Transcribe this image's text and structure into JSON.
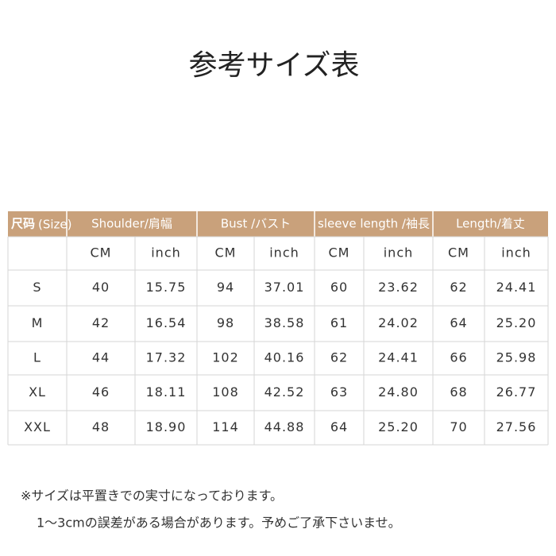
{
  "title": "参考サイズ表",
  "table": {
    "size_label": "尺码",
    "size_note": "(Size)",
    "groups": [
      "Shoulder/肩幅",
      "Bust /バスト",
      "sleeve length /袖長",
      "Length/着丈"
    ],
    "units": [
      "CM",
      "inch",
      "CM",
      "inch",
      "CM",
      "inch",
      "CM",
      "inch"
    ],
    "rows": [
      [
        "S",
        "40",
        "15.75",
        "94",
        "37.01",
        "60",
        "23.62",
        "62",
        "24.41"
      ],
      [
        "M",
        "42",
        "16.54",
        "98",
        "38.58",
        "61",
        "24.02",
        "64",
        "25.20"
      ],
      [
        "L",
        "44",
        "17.32",
        "102",
        "40.16",
        "62",
        "24.41",
        "66",
        "25.98"
      ],
      [
        "XL",
        "46",
        "18.11",
        "108",
        "42.52",
        "63",
        "24.80",
        "68",
        "26.77"
      ],
      [
        "XXL",
        "48",
        "18.90",
        "114",
        "44.88",
        "64",
        "25.20",
        "70",
        "27.56"
      ]
    ]
  },
  "notes": [
    "※サイズは平置きでの実寸になっております。",
    "1～3cmの誤差がある場合があります。予めご了承下さいませ。"
  ]
}
